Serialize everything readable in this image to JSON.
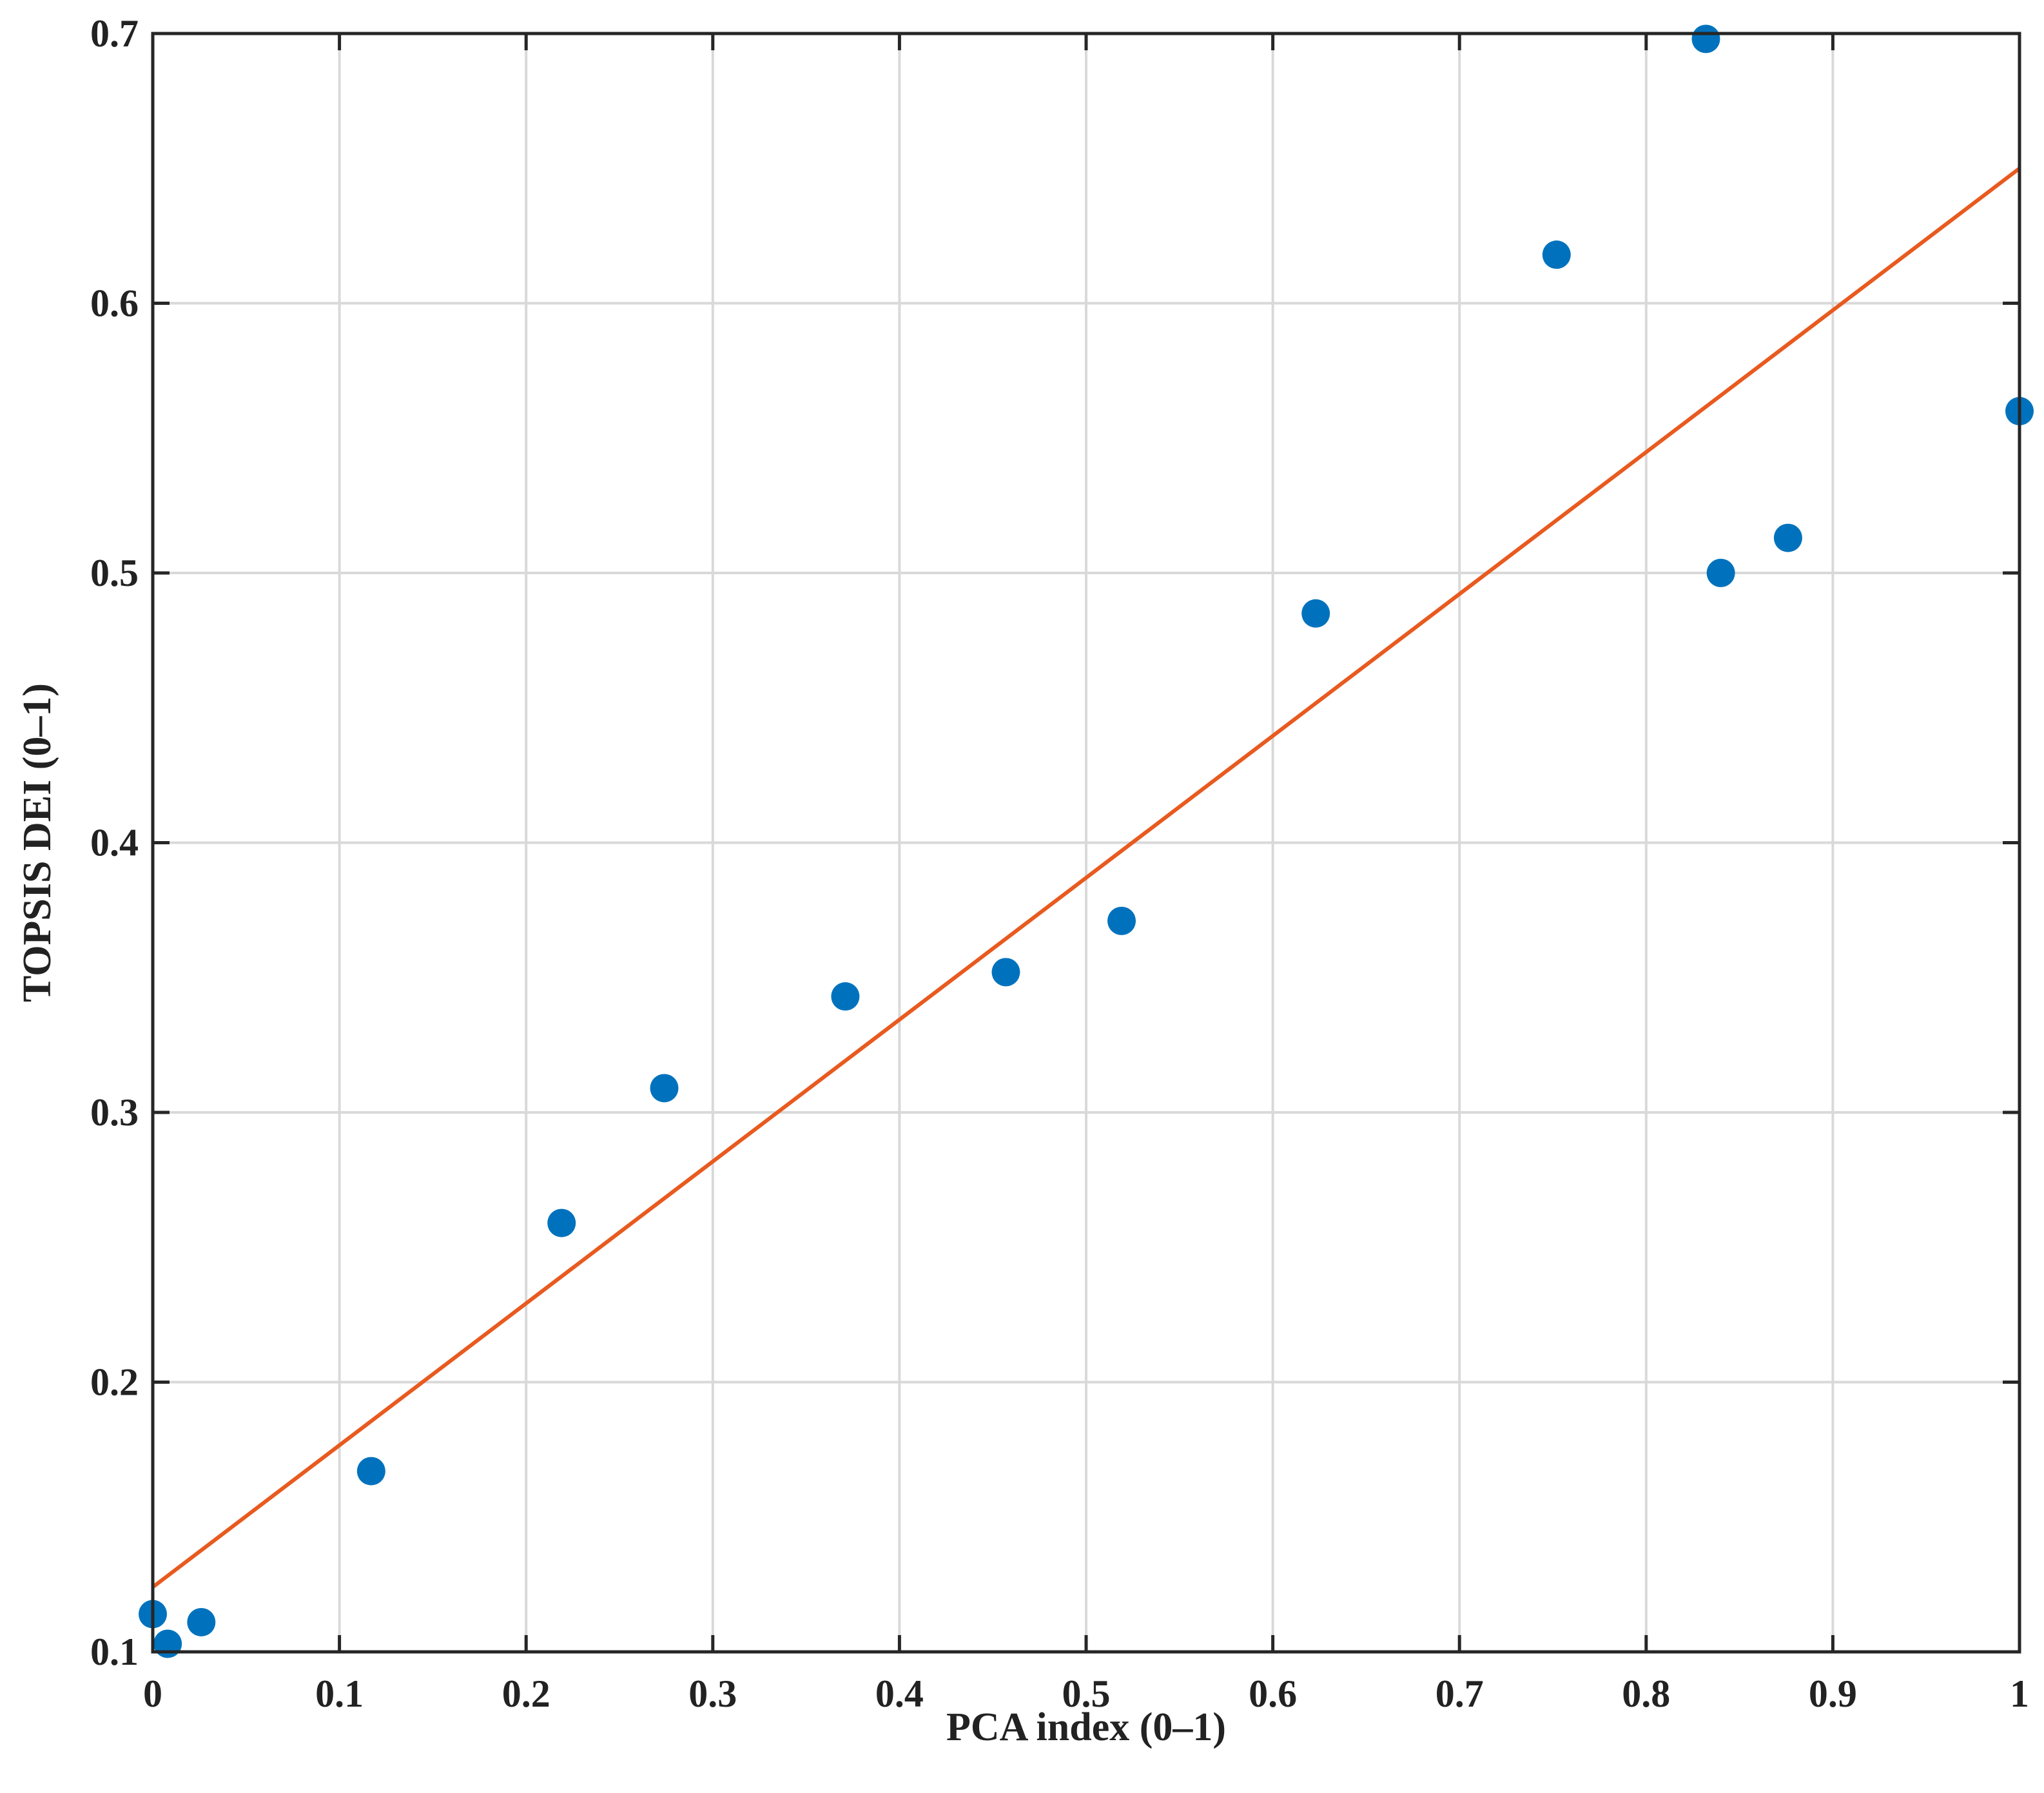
{
  "chart_data": {
    "type": "scatter",
    "title": "",
    "xlabel": "PCA index (0–1)",
    "ylabel": "TOPSIS DEI (0–1)",
    "xlim": [
      0,
      1
    ],
    "ylim": [
      0.1,
      0.7
    ],
    "xticks": [
      0,
      0.1,
      0.2,
      0.3,
      0.4,
      0.5,
      0.6,
      0.7,
      0.8,
      0.9,
      1
    ],
    "xtick_labels": [
      "0",
      "0.1",
      "0.2",
      "0.3",
      "0.4",
      "0.5",
      "0.6",
      "0.7",
      "0.8",
      "0.9",
      "1"
    ],
    "yticks": [
      0.1,
      0.2,
      0.3,
      0.4,
      0.5,
      0.6,
      0.7
    ],
    "ytick_labels": [
      "0.1",
      "0.2",
      "0.3",
      "0.4",
      "0.5",
      "0.6",
      "0.7"
    ],
    "grid": true,
    "legend": false,
    "series": [
      {
        "kind": "scatter",
        "color": "#0072BD",
        "points": [
          {
            "x": 0.0,
            "y": 0.114
          },
          {
            "x": 0.008,
            "y": 0.103
          },
          {
            "x": 0.026,
            "y": 0.111
          },
          {
            "x": 0.117,
            "y": 0.167
          },
          {
            "x": 0.219,
            "y": 0.259
          },
          {
            "x": 0.274,
            "y": 0.309
          },
          {
            "x": 0.371,
            "y": 0.343
          },
          {
            "x": 0.457,
            "y": 0.352
          },
          {
            "x": 0.519,
            "y": 0.371
          },
          {
            "x": 0.623,
            "y": 0.485
          },
          {
            "x": 0.752,
            "y": 0.618
          },
          {
            "x": 0.832,
            "y": 0.698
          },
          {
            "x": 0.84,
            "y": 0.5
          },
          {
            "x": 0.876,
            "y": 0.513
          },
          {
            "x": 1.0,
            "y": 0.56
          }
        ]
      },
      {
        "kind": "line",
        "color": "#E85A1F",
        "points": [
          {
            "x": 0.0,
            "y": 0.124
          },
          {
            "x": 1.0,
            "y": 0.65
          }
        ]
      }
    ]
  }
}
